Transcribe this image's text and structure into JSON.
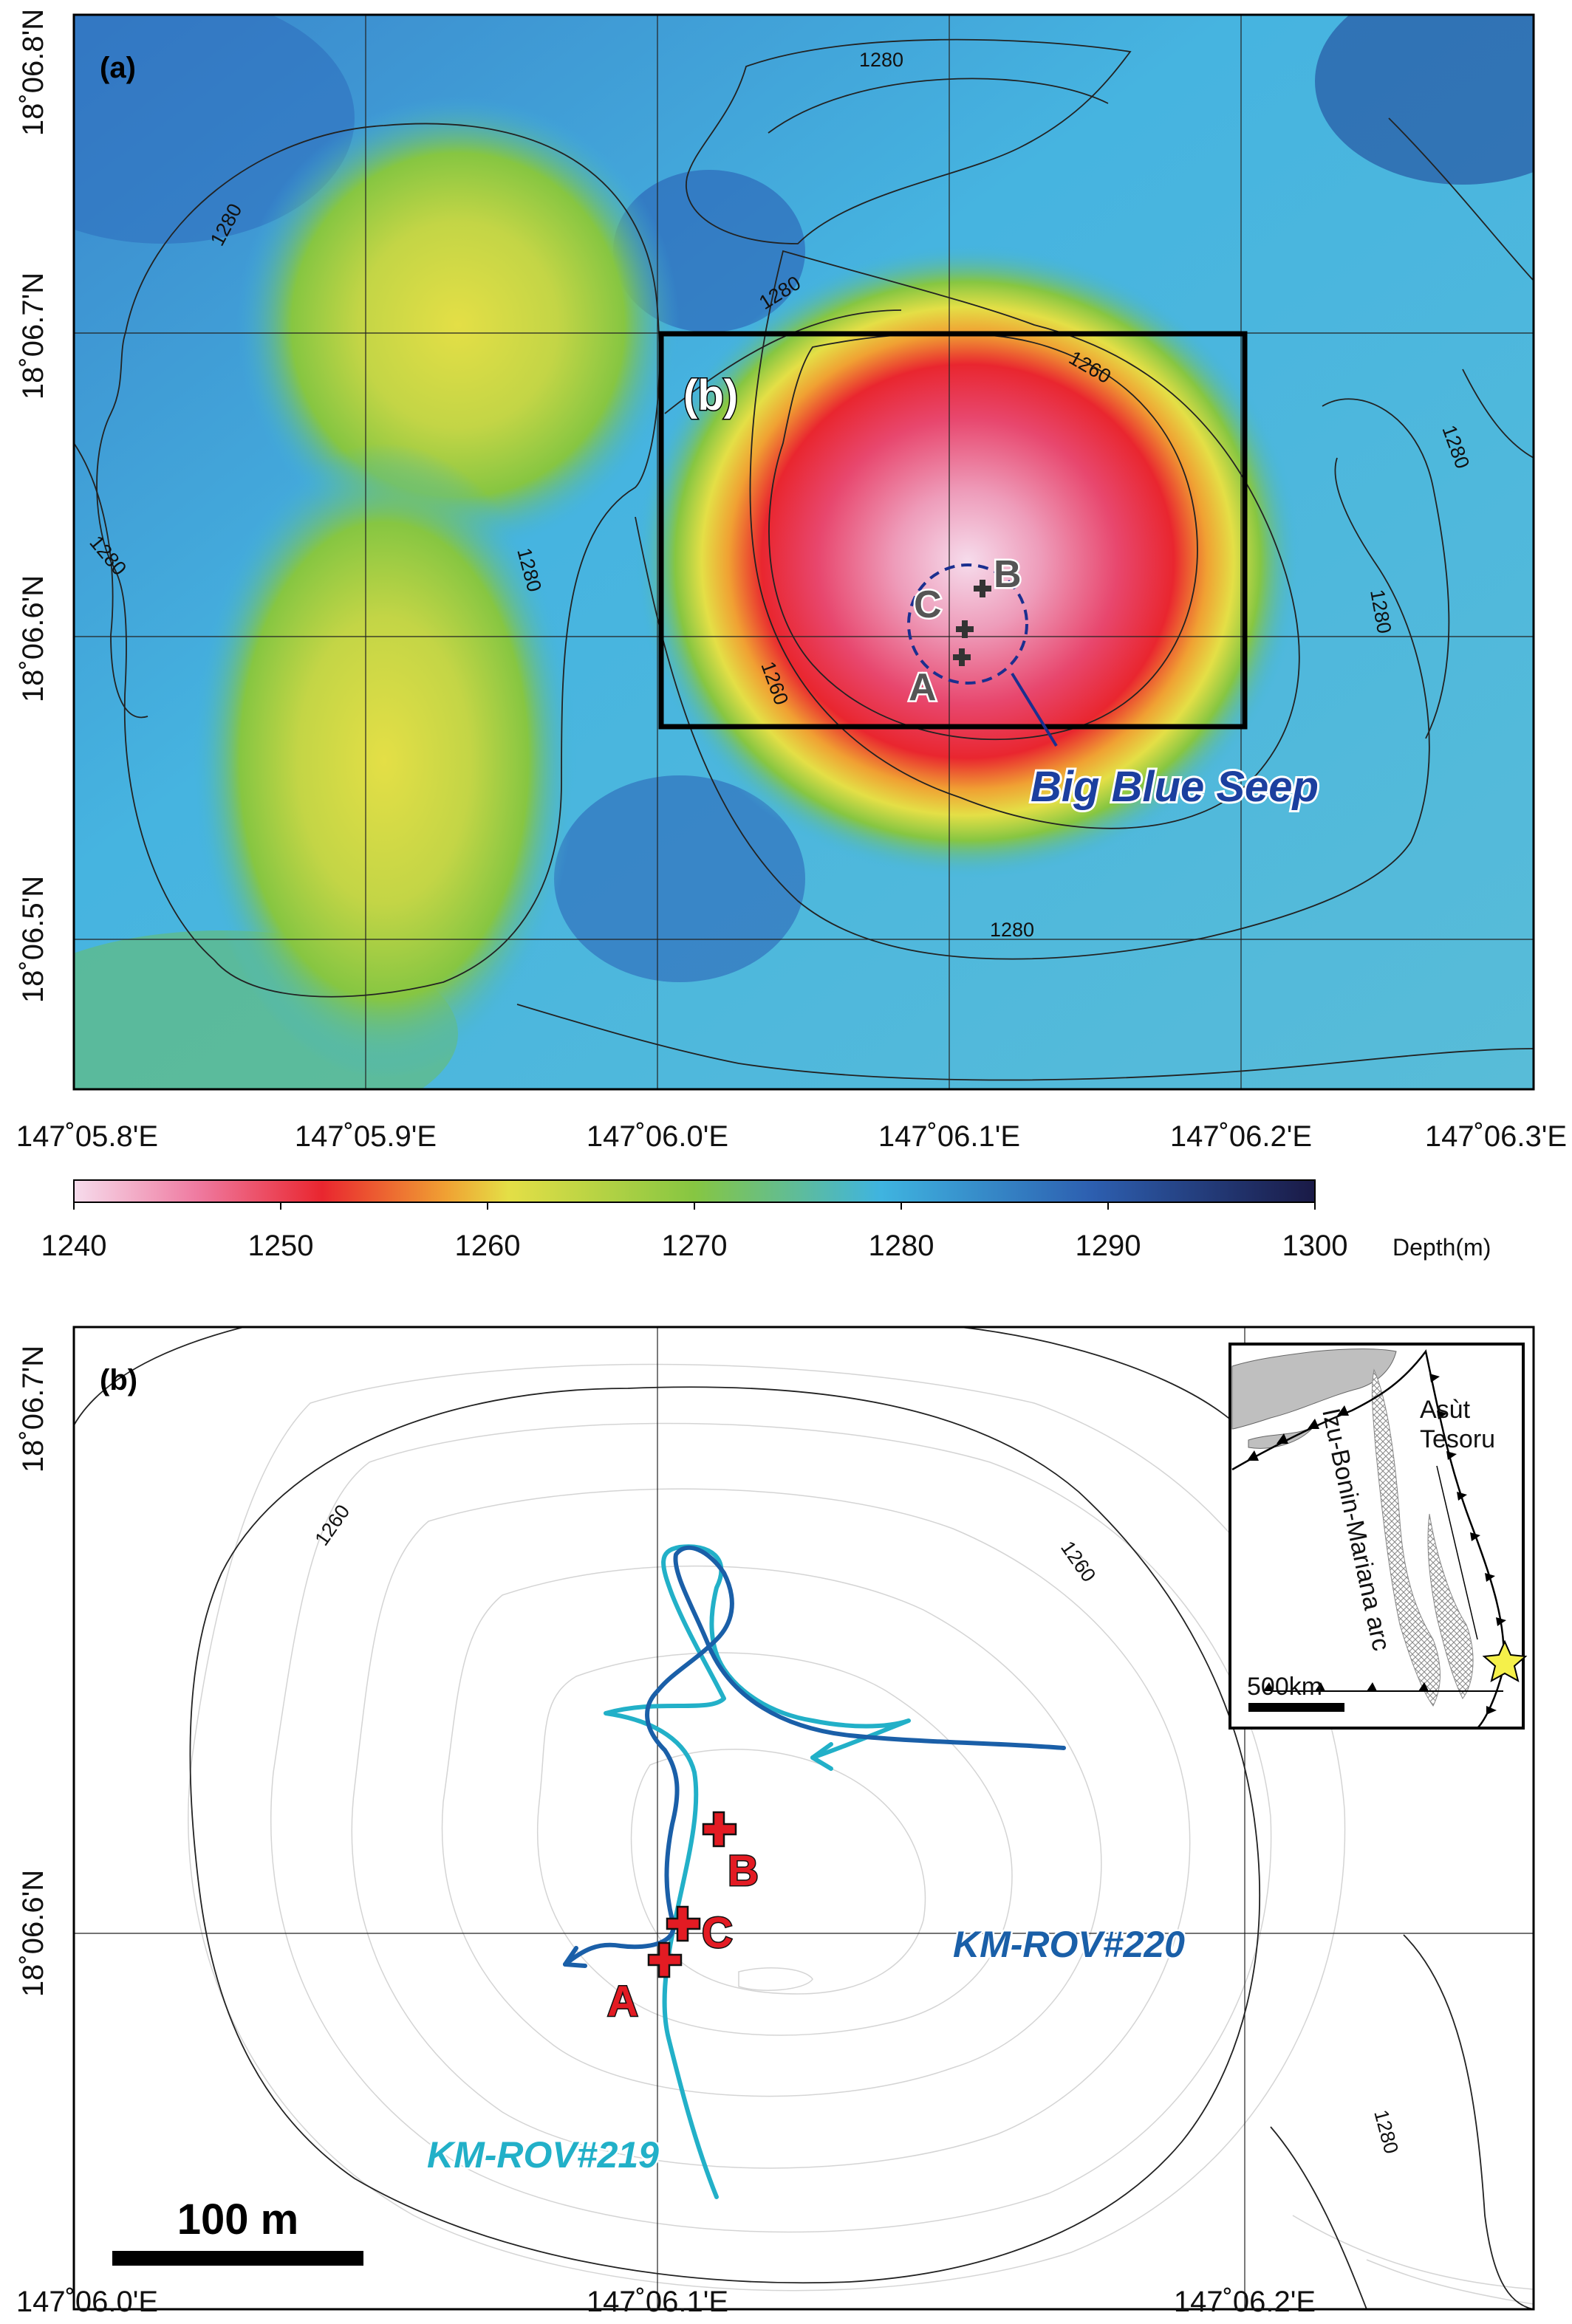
{
  "panel_a": {
    "label": "(a)",
    "inset_box_label": "(b)",
    "lat_ticks": [
      "18˚06.8'N",
      "18˚06.7'N",
      "18˚06.6'N",
      "18˚06.5'N"
    ],
    "lon_ticks": [
      "147˚05.8'E",
      "147˚05.9'E",
      "147˚06.0'E",
      "147˚06.1'E",
      "147˚06.2'E",
      "147˚06.3'E"
    ],
    "contour_labels": [
      "1280",
      "1280",
      "1280",
      "1280",
      "1280",
      "1280",
      "1280",
      "1260",
      "1260"
    ],
    "seep_label": "Big Blue Seep",
    "markers": [
      "A",
      "B",
      "C"
    ]
  },
  "colorbar": {
    "ticks": [
      "1240",
      "1250",
      "1260",
      "1270",
      "1280",
      "1290",
      "1300"
    ],
    "unit": "Depth(m)",
    "range": [
      1240,
      1300
    ],
    "colors": [
      "#f6dcec",
      "#e8476e",
      "#e9262f",
      "#f0a133",
      "#e4df46",
      "#86c642",
      "#3fb4e0",
      "#2d5fb0",
      "#1a1a46"
    ]
  },
  "panel_b": {
    "label": "(b)",
    "lat_ticks": [
      "18˚06.7'N",
      "18˚06.6'N"
    ],
    "lon_ticks": [
      "147˚06.0'E",
      "147˚06.1'E",
      "147˚06.2'E"
    ],
    "contour_labels": [
      "1260",
      "1260",
      "1280"
    ],
    "markers": [
      "A",
      "B",
      "C"
    ],
    "dive_220": "KM-ROV#220",
    "dive_219": "KM-ROV#219",
    "scale_label": "100 m",
    "track_colors": {
      "dive_220": "#1a5fa8",
      "dive_219": "#22b0c8"
    },
    "marker_color": "#e31b23"
  },
  "inset": {
    "arc_label": "Izu-Bonin-Mariana arc",
    "site_line1": "Asùt",
    "site_line2": "Tesoru",
    "scale_label": "500km"
  }
}
